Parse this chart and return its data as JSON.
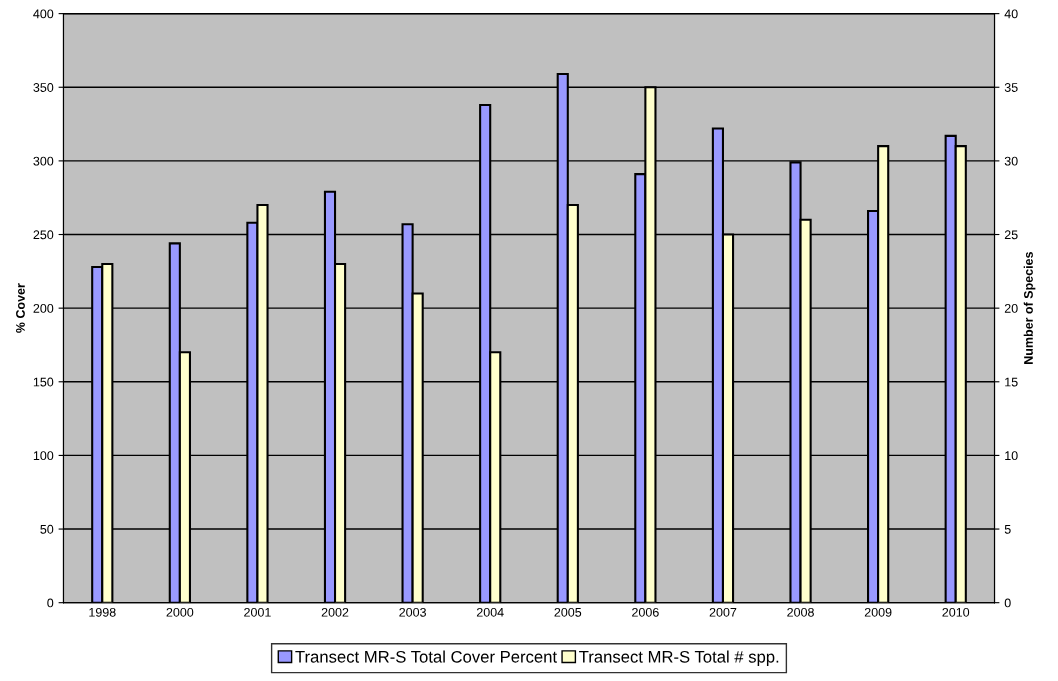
{
  "chart_data": {
    "type": "bar",
    "ylabel": "% Cover",
    "y2label": "Number of Species",
    "categories": [
      "1998",
      "2000",
      "2001",
      "2002",
      "2003",
      "2004",
      "2005",
      "2006",
      "2007",
      "2008",
      "2009",
      "2010"
    ],
    "series": [
      {
        "name": "Transect MR-S Total Cover Percent",
        "color": "#9999ff",
        "values": [
          228,
          244,
          258,
          279,
          257,
          338,
          359,
          291,
          322,
          299,
          266,
          317
        ]
      },
      {
        "name": "Transect MR-S Total # spp.",
        "color": "#ffffcc",
        "axis": "y2",
        "values": [
          23,
          17,
          27,
          23,
          21,
          17,
          27,
          35,
          25,
          26,
          31,
          31
        ]
      }
    ],
    "ylim": [
      0,
      400
    ],
    "yticks": [
      0,
      50,
      100,
      150,
      200,
      250,
      300,
      350,
      400
    ],
    "y2lim": [
      0,
      40
    ],
    "y2ticks": [
      0,
      5,
      10,
      15,
      20,
      25,
      30,
      35,
      40
    ],
    "grid": "y",
    "legend": "bottom"
  }
}
